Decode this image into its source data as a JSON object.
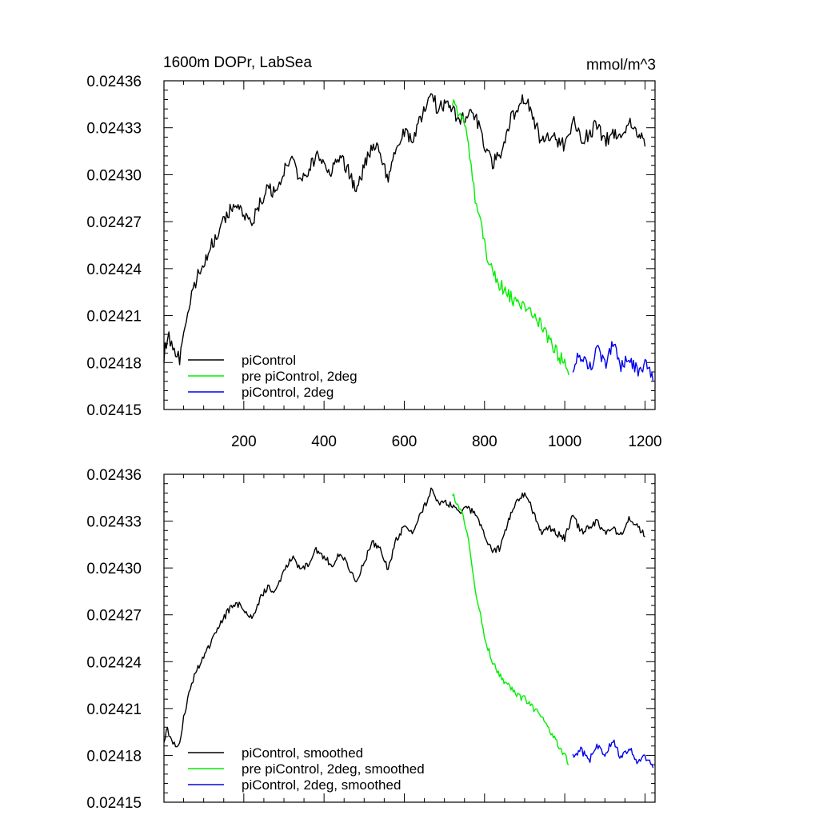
{
  "chart_data": [
    {
      "type": "line",
      "title": "1600m DOPr, LabSea",
      "units": "mmol/m^3",
      "xlim": [
        1,
        1225
      ],
      "ylim": [
        0.02415,
        0.02436
      ],
      "xticks": [
        200,
        400,
        600,
        800,
        1000,
        1200
      ],
      "xtick_labels": [
        "200",
        "400",
        "600",
        "800",
        "1000",
        "1200"
      ],
      "yticks": [
        0.02415,
        0.02418,
        0.02421,
        0.02424,
        0.02427,
        0.0243,
        0.02433,
        0.02436
      ],
      "ytick_labels": [
        "0.02415",
        "0.02418",
        "0.02421",
        "0.02424",
        "0.02427",
        "0.02430",
        "0.02433",
        "0.02436"
      ],
      "legend": [
        "piControl",
        "pre piControl, 2deg",
        "piControl, 2deg"
      ],
      "series": [
        {
          "name": "piControl",
          "color": "#000000",
          "x": [
            1,
            10,
            20,
            30,
            40,
            50,
            60,
            70,
            80,
            100,
            120,
            140,
            160,
            180,
            200,
            220,
            240,
            260,
            280,
            300,
            320,
            340,
            360,
            380,
            400,
            420,
            440,
            460,
            480,
            500,
            520,
            540,
            560,
            580,
            600,
            620,
            640,
            660,
            670,
            680,
            700,
            720,
            740,
            760,
            780,
            800,
            820,
            840,
            860,
            880,
            900,
            920,
            940,
            960,
            980,
            1000,
            1020,
            1040,
            1060,
            1080,
            1100,
            1120,
            1140,
            1160,
            1180,
            1200
          ],
          "y": [
            0.024185,
            0.024197,
            0.024193,
            0.024187,
            0.024182,
            0.024198,
            0.02421,
            0.024222,
            0.024232,
            0.024243,
            0.024255,
            0.024265,
            0.024275,
            0.024281,
            0.024275,
            0.024268,
            0.024282,
            0.024291,
            0.024287,
            0.024302,
            0.024309,
            0.024298,
            0.024301,
            0.024313,
            0.024308,
            0.024302,
            0.024312,
            0.024303,
            0.024288,
            0.024305,
            0.024318,
            0.024315,
            0.024297,
            0.024319,
            0.024328,
            0.024323,
            0.024335,
            0.024347,
            0.024355,
            0.024343,
            0.024345,
            0.02434,
            0.024336,
            0.024339,
            0.024336,
            0.024318,
            0.024308,
            0.024312,
            0.024332,
            0.024343,
            0.024349,
            0.024338,
            0.024322,
            0.024326,
            0.024322,
            0.024318,
            0.024335,
            0.024322,
            0.024326,
            0.024332,
            0.024322,
            0.024326,
            0.024321,
            0.024333,
            0.024328,
            0.024318
          ]
        },
        {
          "name": "pre piControl, 2deg",
          "color": "#00ee00",
          "x": [
            720,
            730,
            740,
            750,
            760,
            770,
            780,
            790,
            800,
            820,
            840,
            860,
            880,
            900,
            920,
            940,
            960,
            980,
            1000,
            1010
          ],
          "y": [
            0.024347,
            0.024343,
            0.024338,
            0.024331,
            0.024318,
            0.024298,
            0.024278,
            0.024268,
            0.024255,
            0.024238,
            0.024229,
            0.024223,
            0.024218,
            0.024215,
            0.02421,
            0.024204,
            0.024194,
            0.024187,
            0.024178,
            0.024172
          ]
        },
        {
          "name": "piControl, 2deg",
          "color": "#0000ee",
          "x": [
            1020,
            1040,
            1060,
            1080,
            1100,
            1120,
            1140,
            1160,
            1180,
            1200,
            1220
          ],
          "y": [
            0.024178,
            0.024185,
            0.024174,
            0.024188,
            0.024178,
            0.024192,
            0.024177,
            0.024185,
            0.024174,
            0.024179,
            0.024168
          ]
        }
      ]
    },
    {
      "type": "line",
      "title": "",
      "xlim": [
        1,
        1225
      ],
      "ylim": [
        0.02415,
        0.02436
      ],
      "xticks": [
        200,
        400,
        600,
        800,
        1000,
        1200
      ],
      "yticks": [
        0.02415,
        0.02418,
        0.02421,
        0.02424,
        0.02427,
        0.0243,
        0.02433,
        0.02436
      ],
      "ytick_labels": [
        "0.02415",
        "0.02418",
        "0.02421",
        "0.02424",
        "0.02427",
        "0.02430",
        "0.02433",
        "0.02436"
      ],
      "legend": [
        "piControl, smoothed",
        "pre piControl, 2deg, smoothed",
        "piControl, 2deg, smoothed"
      ],
      "series": [
        {
          "name": "piControl, smoothed",
          "color": "#000000",
          "x": [
            1,
            10,
            20,
            30,
            40,
            50,
            60,
            70,
            80,
            100,
            120,
            140,
            160,
            180,
            200,
            220,
            240,
            260,
            280,
            300,
            320,
            340,
            360,
            380,
            400,
            420,
            440,
            460,
            480,
            500,
            520,
            540,
            560,
            580,
            600,
            620,
            640,
            660,
            670,
            680,
            700,
            720,
            740,
            760,
            780,
            800,
            820,
            840,
            860,
            880,
            900,
            920,
            940,
            960,
            980,
            1000,
            1020,
            1040,
            1060,
            1080,
            1100,
            1120,
            1140,
            1160,
            1180,
            1200
          ],
          "y": [
            0.02419,
            0.024197,
            0.024189,
            0.024186,
            0.024188,
            0.024204,
            0.024216,
            0.024226,
            0.024234,
            0.024242,
            0.024253,
            0.024263,
            0.024272,
            0.024278,
            0.024274,
            0.024268,
            0.02428,
            0.024288,
            0.024285,
            0.024298,
            0.024307,
            0.024299,
            0.024302,
            0.024311,
            0.024307,
            0.024302,
            0.02431,
            0.024302,
            0.02429,
            0.024304,
            0.024316,
            0.024313,
            0.024299,
            0.024318,
            0.024327,
            0.024323,
            0.024334,
            0.024345,
            0.024351,
            0.024342,
            0.024343,
            0.024339,
            0.024336,
            0.024338,
            0.024335,
            0.02432,
            0.02431,
            0.024313,
            0.02433,
            0.024342,
            0.024348,
            0.024337,
            0.024323,
            0.024326,
            0.024322,
            0.024319,
            0.024334,
            0.024323,
            0.024326,
            0.02433,
            0.024322,
            0.024325,
            0.024321,
            0.024332,
            0.024328,
            0.02432
          ]
        },
        {
          "name": "pre piControl, 2deg, smoothed",
          "color": "#00ee00",
          "x": [
            720,
            730,
            740,
            750,
            760,
            770,
            780,
            790,
            800,
            820,
            840,
            860,
            880,
            900,
            920,
            940,
            960,
            980,
            1000,
            1010
          ],
          "y": [
            0.024347,
            0.024342,
            0.024337,
            0.02433,
            0.024318,
            0.0243,
            0.024281,
            0.02427,
            0.024257,
            0.024239,
            0.02423,
            0.024224,
            0.024219,
            0.024216,
            0.024211,
            0.024205,
            0.024196,
            0.024188,
            0.02418,
            0.024174
          ]
        },
        {
          "name": "piControl, 2deg, smoothed",
          "color": "#0000ee",
          "x": [
            1020,
            1040,
            1060,
            1080,
            1100,
            1120,
            1140,
            1160,
            1180,
            1200,
            1220
          ],
          "y": [
            0.024179,
            0.024184,
            0.024176,
            0.024187,
            0.024179,
            0.02419,
            0.024178,
            0.024185,
            0.024176,
            0.024179,
            0.024172
          ]
        }
      ]
    }
  ]
}
